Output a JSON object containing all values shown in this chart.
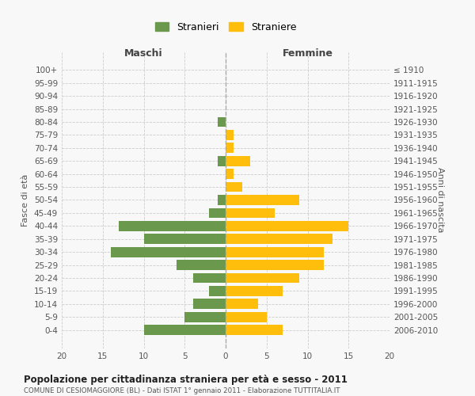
{
  "age_groups": [
    "0-4",
    "5-9",
    "10-14",
    "15-19",
    "20-24",
    "25-29",
    "30-34",
    "35-39",
    "40-44",
    "45-49",
    "50-54",
    "55-59",
    "60-64",
    "65-69",
    "70-74",
    "75-79",
    "80-84",
    "85-89",
    "90-94",
    "95-99",
    "100+"
  ],
  "birth_years": [
    "2006-2010",
    "2001-2005",
    "1996-2000",
    "1991-1995",
    "1986-1990",
    "1981-1985",
    "1976-1980",
    "1971-1975",
    "1966-1970",
    "1961-1965",
    "1956-1960",
    "1951-1955",
    "1946-1950",
    "1941-1945",
    "1936-1940",
    "1931-1935",
    "1926-1930",
    "1921-1925",
    "1916-1920",
    "1911-1915",
    "≤ 1910"
  ],
  "maschi": [
    10,
    5,
    4,
    2,
    4,
    6,
    14,
    10,
    13,
    2,
    1,
    0,
    0,
    1,
    0,
    0,
    1,
    0,
    0,
    0,
    0
  ],
  "femmine": [
    7,
    5,
    4,
    7,
    9,
    12,
    12,
    13,
    15,
    6,
    9,
    2,
    1,
    3,
    1,
    1,
    0,
    0,
    0,
    0,
    0
  ],
  "color_maschi": "#6a994e",
  "color_femmine": "#ffbe0b",
  "title": "Popolazione per cittadinanza straniera per età e sesso - 2011",
  "subtitle": "COMUNE DI CESIOMAGGIORE (BL) - Dati ISTAT 1° gennaio 2011 - Elaborazione TUTTITALIA.IT",
  "xlabel_left": "Maschi",
  "xlabel_right": "Femmine",
  "ylabel_left": "Fasce di età",
  "ylabel_right": "Anni di nascita",
  "xlim": 20,
  "legend_stranieri": "Stranieri",
  "legend_straniere": "Straniere",
  "bg_color": "#f8f8f8",
  "grid_color": "#cccccc"
}
